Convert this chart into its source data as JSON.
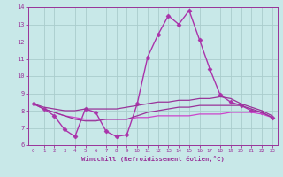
{
  "xlabel": "Windchill (Refroidissement éolien,°C)",
  "xlim": [
    0,
    23
  ],
  "ylim": [
    6,
    14
  ],
  "yticks": [
    6,
    7,
    8,
    9,
    10,
    11,
    12,
    13,
    14
  ],
  "xticks": [
    0,
    1,
    2,
    3,
    4,
    5,
    6,
    7,
    8,
    9,
    10,
    11,
    12,
    13,
    14,
    15,
    16,
    17,
    18,
    19,
    20,
    21,
    22,
    23
  ],
  "background_color": "#c8e8e8",
  "grid_color": "#aacccc",
  "series": [
    {
      "x": [
        0,
        1,
        2,
        3,
        4,
        5,
        6,
        7,
        8,
        9,
        10,
        11,
        12,
        13,
        14,
        15,
        16,
        17,
        18,
        19,
        20,
        21,
        22,
        23
      ],
      "y": [
        8.4,
        8.1,
        7.7,
        6.9,
        6.5,
        8.1,
        7.9,
        6.8,
        6.5,
        6.6,
        8.4,
        11.1,
        12.4,
        13.5,
        13.0,
        13.8,
        12.1,
        10.4,
        8.9,
        8.5,
        8.3,
        8.0,
        7.9,
        7.6
      ],
      "color": "#aa33aa",
      "marker": "D",
      "markersize": 2.5,
      "linewidth": 1.0
    },
    {
      "x": [
        0,
        1,
        2,
        3,
        4,
        5,
        6,
        7,
        8,
        9,
        10,
        11,
        12,
        13,
        14,
        15,
        16,
        17,
        18,
        19,
        20,
        21,
        22,
        23
      ],
      "y": [
        8.4,
        8.2,
        8.1,
        8.0,
        8.0,
        8.1,
        8.1,
        8.1,
        8.1,
        8.2,
        8.3,
        8.4,
        8.5,
        8.5,
        8.6,
        8.6,
        8.7,
        8.7,
        8.8,
        8.7,
        8.4,
        8.2,
        8.0,
        7.7
      ],
      "color": "#993399",
      "marker": null,
      "markersize": 0,
      "linewidth": 0.9
    },
    {
      "x": [
        0,
        1,
        2,
        3,
        4,
        5,
        6,
        7,
        8,
        9,
        10,
        11,
        12,
        13,
        14,
        15,
        16,
        17,
        18,
        19,
        20,
        21,
        22,
        23
      ],
      "y": [
        8.4,
        8.1,
        7.9,
        7.7,
        7.6,
        7.5,
        7.5,
        7.5,
        7.5,
        7.5,
        7.6,
        7.6,
        7.7,
        7.7,
        7.7,
        7.7,
        7.8,
        7.8,
        7.8,
        7.9,
        7.9,
        7.9,
        7.8,
        7.6
      ],
      "color": "#cc44cc",
      "marker": null,
      "markersize": 0,
      "linewidth": 0.9
    },
    {
      "x": [
        0,
        1,
        2,
        3,
        4,
        5,
        6,
        7,
        8,
        9,
        10,
        11,
        12,
        13,
        14,
        15,
        16,
        17,
        18,
        19,
        20,
        21,
        22,
        23
      ],
      "y": [
        8.4,
        8.1,
        7.9,
        7.7,
        7.5,
        7.4,
        7.4,
        7.5,
        7.5,
        7.5,
        7.7,
        7.9,
        8.0,
        8.1,
        8.2,
        8.2,
        8.3,
        8.3,
        8.3,
        8.3,
        8.3,
        8.1,
        7.9,
        7.6
      ],
      "color": "#993399",
      "marker": null,
      "markersize": 0,
      "linewidth": 0.9
    }
  ]
}
